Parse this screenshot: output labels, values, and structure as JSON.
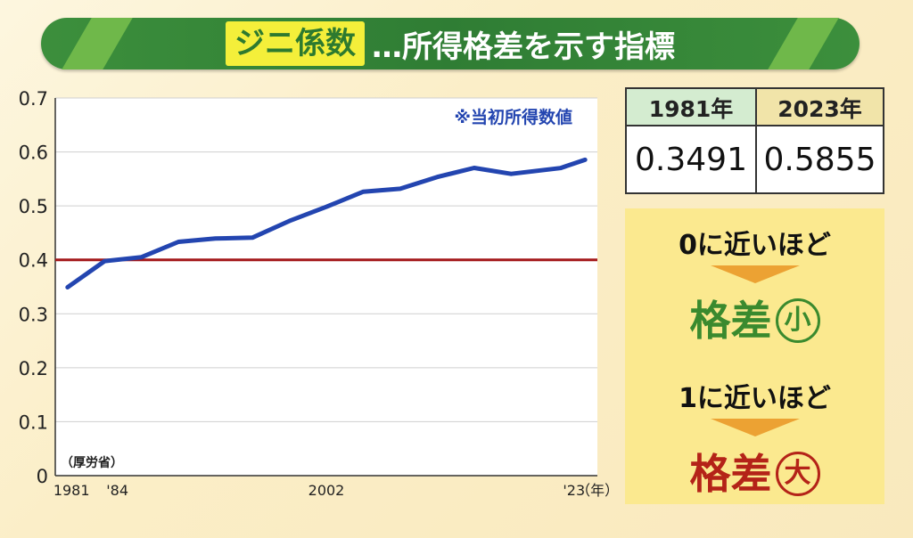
{
  "title": {
    "keyword": "ジニ係数",
    "rest": "…所得格差を示す指標"
  },
  "note": "※当初所得数値",
  "source": "（厚労省）",
  "table": {
    "headers": [
      "1981年",
      "2023年"
    ],
    "values": [
      "0.3491",
      "0.5855"
    ]
  },
  "explain": {
    "low_condition": "0に近いほど",
    "low_result": "格差",
    "low_mark": "小",
    "high_condition": "1に近いほど",
    "high_result": "格差",
    "high_mark": "大"
  },
  "colors": {
    "banner_green": "#2f7d34",
    "keyword_bg": "#f4ef3a",
    "line": "#2345b0",
    "reference_line": "#a4191b",
    "small_color": "#3a8a2e",
    "large_color": "#b42318",
    "arrow": "#eca233"
  },
  "chart_data": {
    "type": "line",
    "x_tick_labels": [
      "1981",
      "'84",
      "2002",
      "'23",
      "（年）"
    ],
    "y_ticks": [
      0,
      0.1,
      0.2,
      0.3,
      0.4,
      0.5,
      0.6,
      0.7
    ],
    "y_tick_labels": [
      "0",
      "0.1",
      "0.2",
      "0.3",
      "0.4",
      "0.5",
      "0.6",
      "0.7"
    ],
    "ylim": [
      0,
      0.7
    ],
    "xlim": [
      1980,
      2024
    ],
    "grid": true,
    "reference_line": 0.4,
    "series": [
      {
        "x": [
          1981,
          1984,
          1987,
          1990,
          1993,
          1996,
          1999,
          2002,
          2005,
          2008,
          2011,
          2014,
          2017,
          2021,
          2023
        ],
        "values": [
          0.3491,
          0.3975,
          0.4049,
          0.4334,
          0.4394,
          0.4412,
          0.472,
          0.4983,
          0.5263,
          0.5318,
          0.5536,
          0.5704,
          0.5594,
          0.57,
          0.5855
        ]
      }
    ]
  }
}
